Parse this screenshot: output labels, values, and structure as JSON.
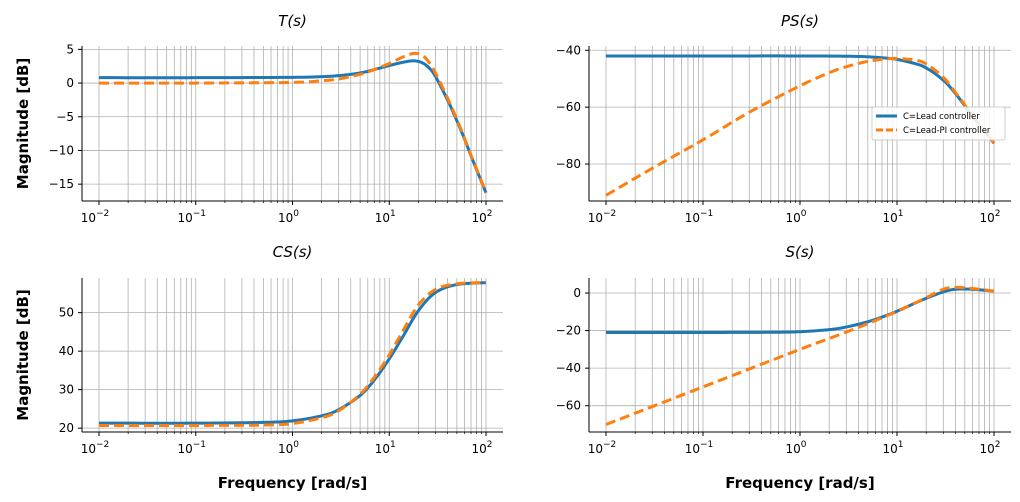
{
  "colors": {
    "lead": "#1f77b4",
    "lead_pi": "#ff7f0e",
    "grid": "#b0b0b0",
    "axis": "#000000"
  },
  "chart_data": [
    {
      "id": "T",
      "type": "line",
      "title": "T(s)",
      "ylabel": "Magnitude [dB]",
      "xlabel": "",
      "xscale": "log",
      "xlim": [
        0.01,
        100
      ],
      "ylim": [
        -17.5,
        5.5
      ],
      "yticks": [
        5,
        0,
        -5,
        -10,
        -15
      ],
      "ytick_labels": [
        "5",
        "0",
        "−5",
        "−10",
        "−15"
      ],
      "xticks": [
        0.01,
        0.1,
        1,
        10,
        100
      ],
      "xtick_labels": [
        "10",
        "10",
        "10",
        "10",
        "10"
      ],
      "xtick_exponents": [
        "−2",
        "−1",
        "0",
        "1",
        "2"
      ],
      "grid": true,
      "series": [
        {
          "name": "C=Lead controller",
          "style": "solid",
          "x": [
            0.01,
            0.1,
            1,
            2,
            3,
            5,
            7,
            10,
            14,
            18,
            22,
            26,
            30,
            40,
            50,
            60,
            70,
            85,
            100
          ],
          "y": [
            0.8,
            0.8,
            0.85,
            0.95,
            1.1,
            1.5,
            2.0,
            2.6,
            3.1,
            3.3,
            3.0,
            2.2,
            1.0,
            -2.5,
            -5.6,
            -8.3,
            -10.8,
            -13.8,
            -16.3
          ]
        },
        {
          "name": "C=Lead-PI controller",
          "style": "dashed",
          "x": [
            0.01,
            0.1,
            1,
            2,
            3,
            5,
            7,
            10,
            14,
            18,
            22,
            26,
            30,
            40,
            50,
            60,
            70,
            85,
            100
          ],
          "y": [
            0.0,
            0.0,
            0.1,
            0.35,
            0.6,
            1.3,
            2.0,
            2.9,
            3.9,
            4.4,
            4.1,
            3.0,
            1.5,
            -2.2,
            -5.4,
            -8.2,
            -10.7,
            -13.7,
            -16.3
          ]
        }
      ]
    },
    {
      "id": "PS",
      "type": "line",
      "title": "PS(s)",
      "ylabel": "",
      "xlabel": "",
      "xscale": "log",
      "xlim": [
        0.01,
        100
      ],
      "ylim": [
        -93,
        -38.5
      ],
      "yticks": [
        -40,
        -60,
        -80
      ],
      "ytick_labels": [
        "−40",
        "−60",
        "−80"
      ],
      "xticks": [
        0.01,
        0.1,
        1,
        10,
        100
      ],
      "xtick_labels": [
        "10",
        "10",
        "10",
        "10",
        "10"
      ],
      "xtick_exponents": [
        "−2",
        "−1",
        "0",
        "1",
        "2"
      ],
      "grid": true,
      "legend": {
        "position": "right",
        "entries": [
          "C=Lead controller",
          "C=Lead-PI controller"
        ]
      },
      "series": [
        {
          "name": "C=Lead controller",
          "style": "solid",
          "x": [
            0.01,
            0.1,
            1,
            3,
            5,
            8,
            10,
            15,
            20,
            30,
            40,
            50,
            60,
            80,
            100
          ],
          "y": [
            -42,
            -42,
            -42,
            -42.1,
            -42.3,
            -42.8,
            -43.2,
            -44.6,
            -46.2,
            -50.5,
            -55.2,
            -59.5,
            -63.2,
            -68.5,
            -72.7
          ]
        },
        {
          "name": "C=Lead-PI controller",
          "style": "dashed",
          "x": [
            0.01,
            0.03,
            0.1,
            0.3,
            1,
            2,
            3,
            5,
            8,
            10,
            15,
            20,
            30,
            40,
            50,
            60,
            80,
            100
          ],
          "y": [
            -91,
            -81.5,
            -71.5,
            -61.8,
            -52.5,
            -47.9,
            -45.8,
            -43.9,
            -43.0,
            -42.9,
            -43.4,
            -44.8,
            -49.5,
            -54.8,
            -59.2,
            -63.0,
            -68.4,
            -72.6
          ]
        }
      ]
    },
    {
      "id": "CS",
      "type": "line",
      "title": "CS(s)",
      "ylabel": "Magnitude [dB]",
      "xlabel": "Frequency [rad/s]",
      "xscale": "log",
      "xlim": [
        0.01,
        100
      ],
      "ylim": [
        19,
        59
      ],
      "yticks": [
        50,
        40,
        30,
        20
      ],
      "ytick_labels": [
        "50",
        "40",
        "30",
        "20"
      ],
      "xticks": [
        0.01,
        0.1,
        1,
        10,
        100
      ],
      "xtick_labels": [
        "10",
        "10",
        "10",
        "10",
        "10"
      ],
      "xtick_exponents": [
        "−2",
        "−1",
        "0",
        "1",
        "2"
      ],
      "grid": true,
      "series": [
        {
          "name": "C=Lead controller",
          "style": "solid",
          "x": [
            0.01,
            0.1,
            0.5,
            1,
            2,
            3,
            5,
            7,
            10,
            14,
            20,
            30,
            50,
            100
          ],
          "y": [
            21.3,
            21.3,
            21.5,
            21.9,
            23.2,
            24.8,
            28.5,
            32.5,
            38.0,
            44.0,
            50.5,
            55.2,
            57.3,
            57.8
          ]
        },
        {
          "name": "C=Lead-PI controller",
          "style": "dashed",
          "x": [
            0.01,
            0.1,
            0.5,
            1,
            2,
            3,
            5,
            7,
            10,
            14,
            20,
            30,
            50,
            100
          ],
          "y": [
            20.7,
            20.7,
            20.8,
            21.2,
            22.7,
            24.5,
            28.8,
            33.2,
            39.0,
            45.5,
            52.0,
            56.0,
            57.5,
            57.8
          ]
        }
      ]
    },
    {
      "id": "S",
      "type": "line",
      "title": "S(s)",
      "ylabel": "",
      "xlabel": "Frequency [rad/s]",
      "xscale": "log",
      "xlim": [
        0.01,
        100
      ],
      "ylim": [
        -74,
        8
      ],
      "yticks": [
        0,
        -20,
        -40,
        -60
      ],
      "ytick_labels": [
        "0",
        "−20",
        "−40",
        "−60"
      ],
      "xticks": [
        0.01,
        0.1,
        1,
        10,
        100
      ],
      "xtick_labels": [
        "10",
        "10",
        "10",
        "10",
        "10"
      ],
      "xtick_exponents": [
        "−2",
        "−1",
        "0",
        "1",
        "2"
      ],
      "grid": true,
      "series": [
        {
          "name": "C=Lead controller",
          "style": "solid",
          "x": [
            0.01,
            0.1,
            0.5,
            1,
            2,
            3,
            5,
            7,
            10,
            15,
            20,
            30,
            40,
            60,
            100
          ],
          "y": [
            -21,
            -21,
            -20.9,
            -20.6,
            -19.5,
            -18.1,
            -15.3,
            -12.8,
            -9.7,
            -5.6,
            -2.8,
            0.6,
            2.0,
            2.0,
            1.0
          ]
        },
        {
          "name": "C=Lead-PI controller",
          "style": "dashed",
          "x": [
            0.01,
            0.1,
            1,
            2,
            3,
            5,
            7,
            10,
            15,
            20,
            30,
            40,
            60,
            100
          ],
          "y": [
            -70,
            -50,
            -30,
            -24.2,
            -20.8,
            -16.3,
            -13.2,
            -9.8,
            -5.6,
            -2.5,
            2.0,
            3.0,
            2.4,
            1.0
          ]
        }
      ]
    }
  ]
}
